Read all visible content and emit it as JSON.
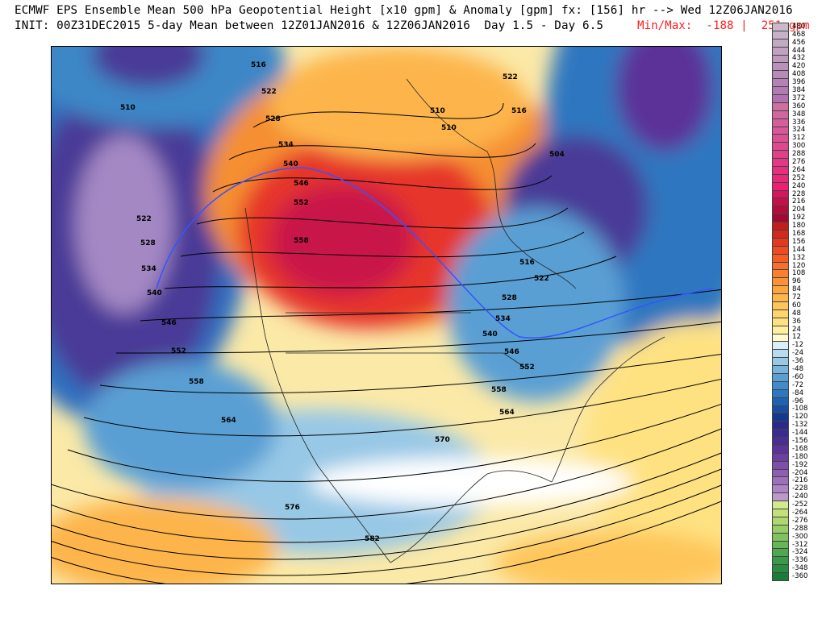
{
  "header": {
    "line1": "ECMWF EPS Ensemble Mean 500 hPa Geopotential Height [x10 gpm] & Anomaly [gpm] fx: [156] hr --> Wed 12Z06JAN2016",
    "line2": "INIT: 00Z31DEC2015 5-day Mean between 12Z01JAN2016 & 12Z06JAN2016  Day 1.5 - Day 6.5",
    "minmax": "Min/Max:  -188 |  251 gpm"
  },
  "map": {
    "projection": "polar stereographic, North America",
    "colors": {
      "background_neutral": "#ffffff",
      "contour": "#000000",
      "contour_540": "#3355ff",
      "border": "#000000"
    },
    "contour_labels": [
      "516",
      "522",
      "528",
      "534",
      "540",
      "546",
      "552",
      "558",
      "564",
      "570",
      "576",
      "582",
      "510",
      "504"
    ]
  },
  "legend": {
    "ticks": [
      "480",
      "468",
      "456",
      "444",
      "432",
      "420",
      "408",
      "396",
      "384",
      "372",
      "360",
      "348",
      "336",
      "324",
      "312",
      "300",
      "288",
      "276",
      "264",
      "252",
      "240",
      "228",
      "216",
      "204",
      "192",
      "180",
      "168",
      "156",
      "144",
      "132",
      "120",
      "108",
      "96",
      "84",
      "72",
      "60",
      "48",
      "36",
      "24",
      "12",
      "-12",
      "-24",
      "-36",
      "-48",
      "-60",
      "-72",
      "-84",
      "-96",
      "-108",
      "-120",
      "-132",
      "-144",
      "-156",
      "-168",
      "-180",
      "-192",
      "-204",
      "-216",
      "-228",
      "-240",
      "-252",
      "-264",
      "-276",
      "-288",
      "-300",
      "-312",
      "-324",
      "-336",
      "-348",
      "-360"
    ],
    "colors": [
      "#c9b9c9",
      "#c6b1c6",
      "#c3a9c3",
      "#c0a1c0",
      "#bd99bd",
      "#ba91ba",
      "#b88ab8",
      "#b582b5",
      "#b27ab2",
      "#b072b0",
      "#cf6fa0",
      "#d2679f",
      "#d55f9c",
      "#d85798",
      "#db4f94",
      "#df478f",
      "#e23f8a",
      "#e53785",
      "#e82f7f",
      "#eb2778",
      "#ee1f72",
      "#d8155a",
      "#c40f4a",
      "#b30b3c",
      "#a30832",
      "#c41d1d",
      "#d42a1e",
      "#e33a1f",
      "#f04a22",
      "#f55d25",
      "#f86e2a",
      "#fa8030",
      "#fb9236",
      "#fca440",
      "#fdb54c",
      "#fec65a",
      "#fed56c",
      "#fee282",
      "#ffef9e",
      "#fffad0",
      "#d9eef8",
      "#b8dcef",
      "#97c8e6",
      "#76b3dd",
      "#5a9fd4",
      "#418bca",
      "#2d77c0",
      "#1f62b3",
      "#174ea3",
      "#13398f",
      "#2b2a8a",
      "#3a2b8e",
      "#4a2d93",
      "#5c3399",
      "#6e3ea1",
      "#7f4daa",
      "#8f5eb3",
      "#9e70bc",
      "#ad84c6",
      "#bd98cf",
      "#d2e98c",
      "#c3e07a",
      "#aed86e",
      "#97cd66",
      "#7fc25e",
      "#67b656",
      "#4fa84f",
      "#3b9a48",
      "#2a8b41",
      "#1b7b39"
    ]
  }
}
